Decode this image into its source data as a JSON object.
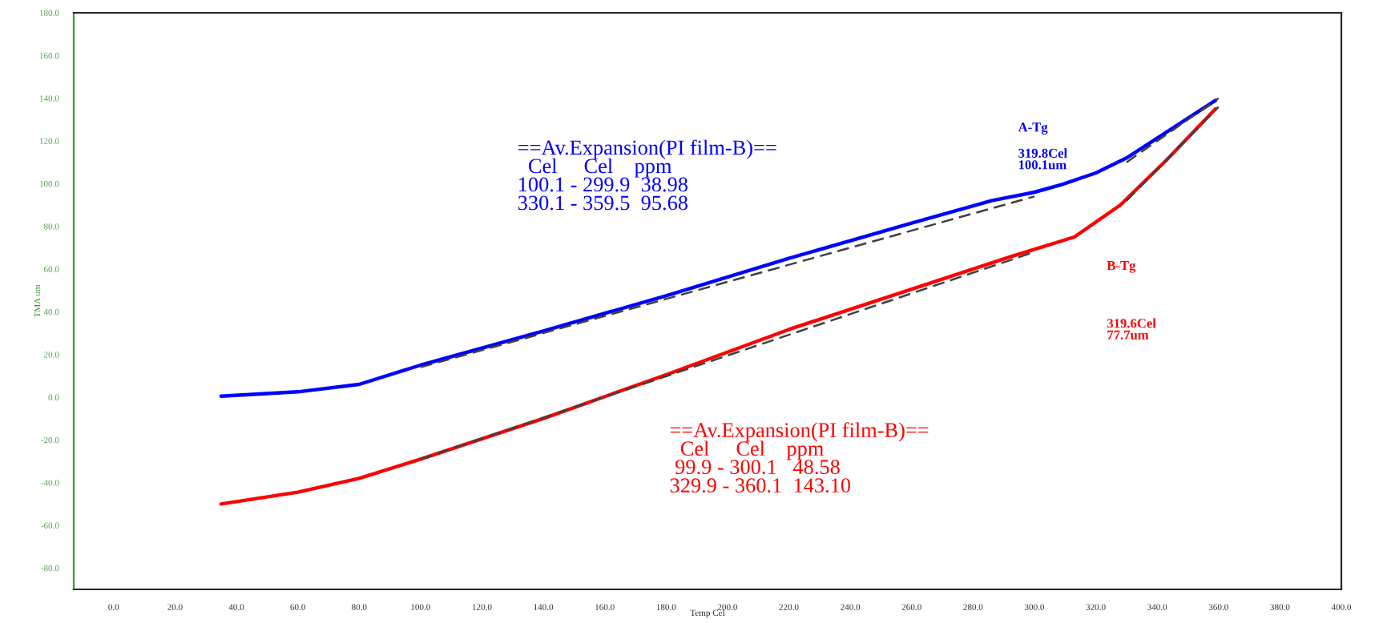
{
  "chart_data": {
    "type": "line",
    "xlabel": "Temp Cel",
    "ylabel": "TMA um",
    "xlim": [
      -13,
      400
    ],
    "ylim": [
      -90,
      180
    ],
    "xticks": [
      {
        "value": 0,
        "label": "0.0"
      },
      {
        "value": 20,
        "label": "20.0"
      },
      {
        "value": 40,
        "label": "40.0"
      },
      {
        "value": 60,
        "label": "60.0"
      },
      {
        "value": 80,
        "label": "80.0"
      },
      {
        "value": 100,
        "label": "100.0"
      },
      {
        "value": 120,
        "label": "120.0"
      },
      {
        "value": 140,
        "label": "140.0"
      },
      {
        "value": 160,
        "label": "160.0"
      },
      {
        "value": 180,
        "label": "180.0"
      },
      {
        "value": 200,
        "label": "200.0"
      },
      {
        "value": 220,
        "label": "220.0"
      },
      {
        "value": 240,
        "label": "240.0"
      },
      {
        "value": 260,
        "label": "260.0"
      },
      {
        "value": 280,
        "label": "280.0"
      },
      {
        "value": 300,
        "label": "300.0"
      },
      {
        "value": 320,
        "label": "320.0"
      },
      {
        "value": 340,
        "label": "340.0"
      },
      {
        "value": 360,
        "label": "360.0"
      },
      {
        "value": 380,
        "label": "380.0"
      },
      {
        "value": 400,
        "label": "400.0"
      }
    ],
    "yticks": [
      {
        "value": -80,
        "label": "-80.0"
      },
      {
        "value": -60,
        "label": "-60.0"
      },
      {
        "value": -40,
        "label": "-40.0"
      },
      {
        "value": -20,
        "label": "-20.0"
      },
      {
        "value": 0,
        "label": "0.0"
      },
      {
        "value": 20,
        "label": "20.0"
      },
      {
        "value": 40,
        "label": "40.0"
      },
      {
        "value": 60,
        "label": "60.0"
      },
      {
        "value": 80,
        "label": "80.0"
      },
      {
        "value": 100,
        "label": "100.0"
      },
      {
        "value": 120,
        "label": "120.0"
      },
      {
        "value": 140,
        "label": "140.0"
      },
      {
        "value": 160,
        "label": "160.0"
      },
      {
        "value": 180,
        "label": "180.0"
      }
    ],
    "grid": false,
    "legend": false,
    "marker": "none",
    "line_style": "solid",
    "series": [
      {
        "color": "#0000ff",
        "x": [
          35,
          60,
          80,
          100,
          140,
          180,
          220,
          260,
          286,
          300,
          309,
          320,
          330,
          359
        ],
        "values": [
          0.5,
          2.5,
          6,
          15,
          31,
          47.5,
          65,
          81.5,
          92,
          96,
          99.6,
          105,
          112,
          139
        ]
      },
      {
        "color": "#ff0000",
        "x": [
          35,
          60,
          80,
          100,
          140,
          180,
          220,
          260,
          292,
          313,
          328,
          343,
          359
        ],
        "values": [
          -50,
          -44.5,
          -38,
          -29,
          -10,
          10.5,
          31.7,
          50.6,
          65.7,
          75,
          90,
          111,
          135
        ]
      },
      {
        "color": "#404040",
        "line_style": "dashed",
        "x": [
          100,
          300
        ],
        "values": [
          14,
          94
        ]
      },
      {
        "color": "#404040",
        "line_style": "dashed",
        "x": [
          330,
          360
        ],
        "values": [
          110,
          140
        ]
      },
      {
        "color": "#404040",
        "line_style": "dashed",
        "x": [
          100,
          300
        ],
        "values": [
          -29,
          68
        ]
      },
      {
        "color": "#404040",
        "line_style": "dashed",
        "x": [
          330,
          360
        ],
        "values": [
          92,
          136
        ]
      }
    ],
    "annotations": [
      "==Av.Expansion(PI film-B)==\n  Cel     Cel    ppm\n100.1 - 299.9  38.98\n330.1 - 359.5  95.68",
      "A-Tg",
      "319.8Cel\n100.1um",
      "==Av.Expansion(PI film-B)==\n  Cel     Cel    ppm\n 99.9 - 300.1   48.58\n329.9 - 360.1  143.10",
      "B-Tg",
      "319.6Cel\n77.7um"
    ]
  }
}
